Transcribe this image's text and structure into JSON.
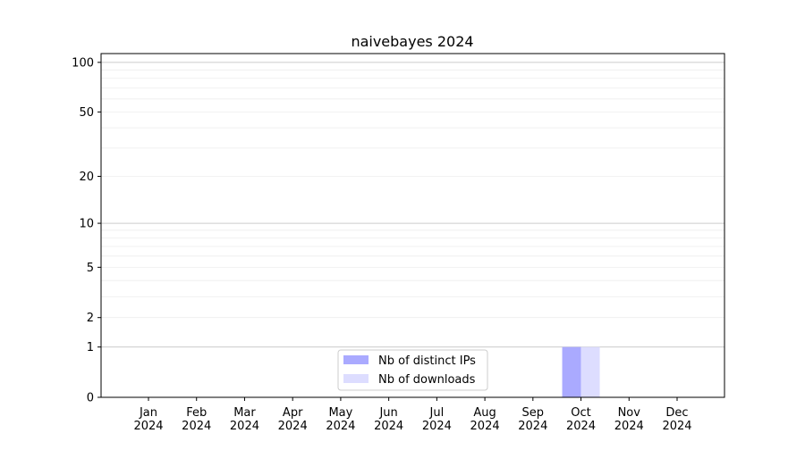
{
  "chart_data": {
    "type": "bar",
    "title": "naivebayes 2024",
    "xlabel": "",
    "ylabel": "",
    "yscale": "log(1+y)",
    "ylim": [
      0,
      113
    ],
    "yticks": [
      0,
      1,
      2,
      5,
      10,
      20,
      50,
      100
    ],
    "grid": true,
    "legend_position": "lower center",
    "categories": [
      "Jan\n2024",
      "Feb\n2024",
      "Mar\n2024",
      "Apr\n2024",
      "May\n2024",
      "Jun\n2024",
      "Jul\n2024",
      "Aug\n2024",
      "Sep\n2024",
      "Oct\n2024",
      "Nov\n2024",
      "Dec\n2024"
    ],
    "series": [
      {
        "name": "Nb of distinct IPs",
        "color": "#aaaaff",
        "values": [
          0,
          0,
          0,
          0,
          0,
          0,
          0,
          0,
          0,
          1,
          0,
          0
        ]
      },
      {
        "name": "Nb of downloads",
        "color": "#ddddff",
        "values": [
          0,
          0,
          0,
          0,
          0,
          0,
          0,
          0,
          0,
          1,
          0,
          0
        ]
      }
    ]
  }
}
